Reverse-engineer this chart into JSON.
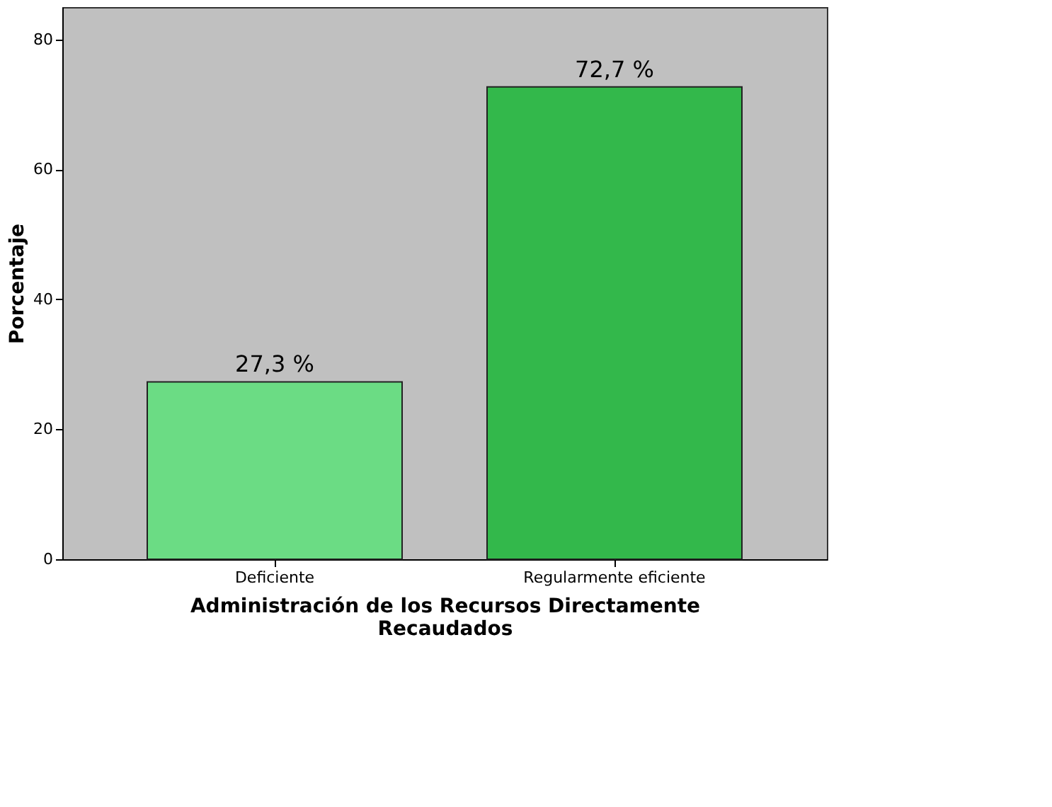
{
  "chart_data": {
    "type": "bar",
    "categories": [
      "Deficiente",
      "Regularmente eficiente"
    ],
    "values": [
      27.3,
      72.7
    ],
    "colors": [
      "#6bdc84",
      "#33b84b"
    ],
    "value_labels": [
      "27,3 %",
      "72,7 %"
    ],
    "xlabel": "Administración de los Recursos Directamente Recaudados",
    "ylabel": "Porcentaje",
    "ylim": [
      0,
      85
    ],
    "yticks": [
      0,
      20,
      40,
      60,
      80
    ],
    "grid": false
  }
}
